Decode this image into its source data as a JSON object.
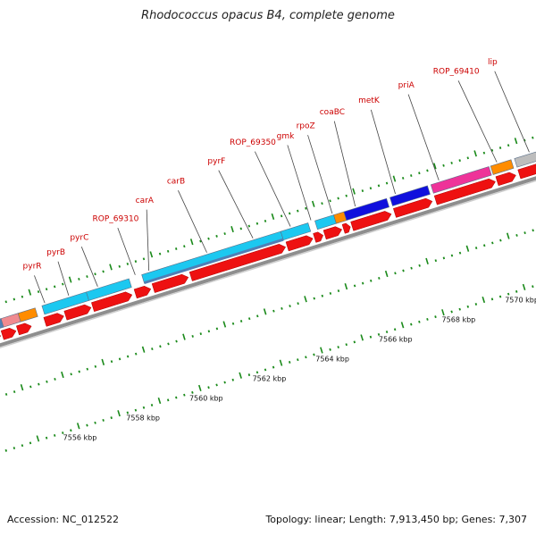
{
  "title": "Rhodococcus opacus B4, complete genome",
  "accession": "Accession: NC_012522",
  "summary": "Topology: linear; Length: 7,913,450 bp; Genes: 7,307",
  "colors": {
    "gene_label": "#cc0000",
    "cds_red": "#ee1111",
    "light_blue": "#1cc8f0",
    "steel_blue": "#4f7fb6",
    "dark_blue": "#1010dd",
    "magenta": "#ee3399",
    "orange": "#ff8c00",
    "salmon": "#f08a90",
    "grey": "#bdbdbd",
    "tick_green": "#1a8a1a",
    "track_grey": "#8e8e8e"
  },
  "gene_labels": [
    "pyrR",
    "pyrB",
    "pyrC",
    "ROP_69310",
    "carA",
    "carB",
    "pyrF",
    "ROP_69350",
    "gmk",
    "rpoZ",
    "coaBC",
    "metK",
    "priA",
    "ROP_69410",
    "lip"
  ],
  "kbp_labels": [
    "7556 kbp",
    "7558 kbp",
    "7560 kbp",
    "7562 kbp",
    "7564 kbp",
    "7566 kbp",
    "7568 kbp",
    "7570 kbp"
  ]
}
